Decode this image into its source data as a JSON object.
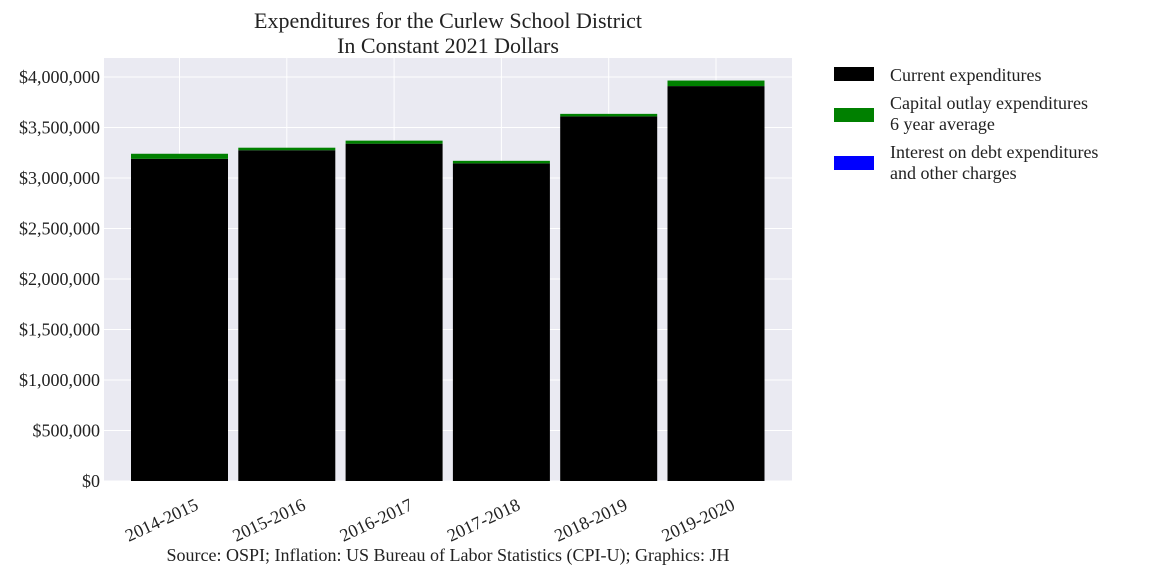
{
  "chart_data": {
    "type": "bar",
    "stacked": true,
    "title_lines": [
      "Expenditures for the Curlew School District",
      "In Constant 2021 Dollars"
    ],
    "categories": [
      "2014-2015",
      "2015-2016",
      "2016-2017",
      "2017-2018",
      "2018-2019",
      "2019-2020"
    ],
    "series": [
      {
        "name": "Current expenditures",
        "color": "#000000",
        "values": [
          3190000,
          3275000,
          3340000,
          3145000,
          3610000,
          3910000
        ]
      },
      {
        "name_lines": [
          "Capital outlay expenditures",
          "6 year average"
        ],
        "color": "#008000",
        "values": [
          50000,
          25000,
          30000,
          25000,
          25000,
          55000
        ]
      },
      {
        "name_lines": [
          "Interest on debt expenditures",
          "and other charges"
        ],
        "color": "#0000ff",
        "values": [
          0,
          0,
          0,
          0,
          0,
          0
        ]
      }
    ],
    "ylim": [
      0,
      4000000
    ],
    "yticks": [
      {
        "value": 0,
        "label": "$0"
      },
      {
        "value": 500000,
        "label": "$500,000"
      },
      {
        "value": 1000000,
        "label": "$1,000,000"
      },
      {
        "value": 1500000,
        "label": "$1,500,000"
      },
      {
        "value": 2000000,
        "label": "$2,000,000"
      },
      {
        "value": 2500000,
        "label": "$2,500,000"
      },
      {
        "value": 3000000,
        "label": "$3,000,000"
      },
      {
        "value": 3500000,
        "label": "$3,500,000"
      },
      {
        "value": 4000000,
        "label": "$4,000,000"
      }
    ],
    "grid": true,
    "legend_position": "outside-top-right",
    "plot_background": "#eaeaf2",
    "source": "Source: OSPI; Inflation: US Bureau of Labor Statistics (CPI-U); Graphics: JH"
  }
}
